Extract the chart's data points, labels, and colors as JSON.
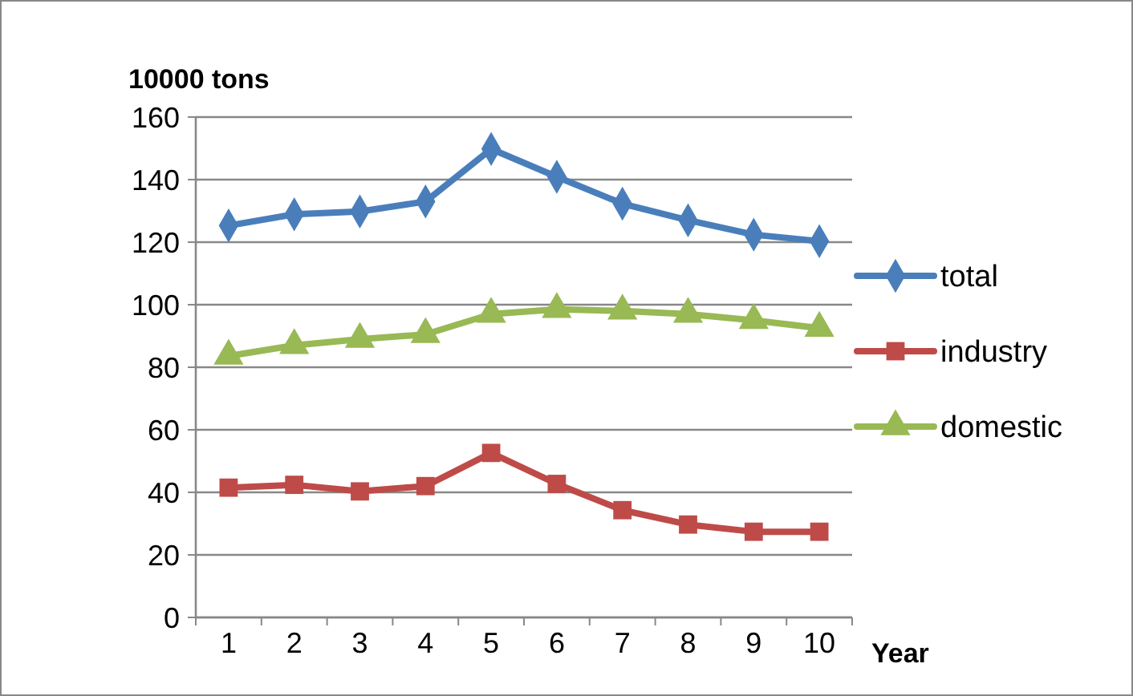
{
  "chart_data": {
    "type": "line",
    "ylabel": "10000 tons",
    "xlabel": "Year",
    "categories": [
      "1",
      "2",
      "3",
      "4",
      "5",
      "6",
      "7",
      "8",
      "9",
      "10"
    ],
    "series": [
      {
        "name": "total",
        "color": "#4a7ebb",
        "marker": "diamond",
        "values": [
          125.3,
          128.9,
          129.8,
          133,
          149.8,
          140.9,
          132.3,
          127,
          122.4,
          120.3
        ]
      },
      {
        "name": "industry",
        "color": "#be4b48",
        "marker": "square",
        "values": [
          41.5,
          42.4,
          40.3,
          42,
          52.6,
          42.7,
          34.3,
          29.7,
          27.4,
          27.4
        ]
      },
      {
        "name": "domestic",
        "color": "#98b954",
        "marker": "triangle",
        "values": [
          83.6,
          87,
          89,
          90.5,
          97,
          98.5,
          98,
          97,
          95,
          92.5
        ]
      }
    ],
    "ylim": [
      0,
      160
    ],
    "yticks": [
      0,
      20,
      40,
      60,
      80,
      100,
      120,
      140,
      160
    ],
    "grid": "y",
    "legend": "right"
  }
}
